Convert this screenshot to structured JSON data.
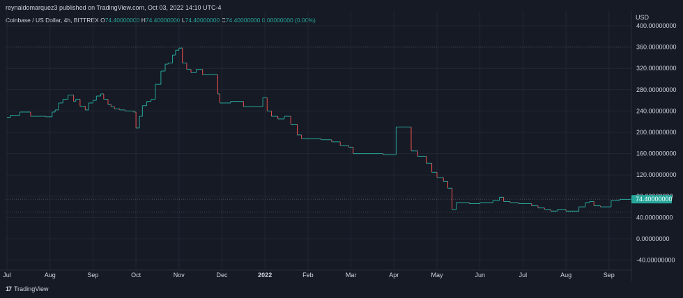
{
  "header": {
    "publisher": "reynaldomarquez3 published on TradingView.com, Oct 03, 2022 14:10 UTC-4"
  },
  "legend": {
    "symbol": "Coinbase / US Dollar, 4h, BITTREX",
    "o_label": "O",
    "o_value": "74.40000000",
    "h_label": "H",
    "h_value": "74.40000000",
    "l_label": "L",
    "l_value": "74.40000000",
    "c_label": "C",
    "c_value": "74.40000000",
    "change": "0.00000000 (0.00%)"
  },
  "footer": {
    "brand": "TradingView",
    "logo": "17"
  },
  "colors": {
    "background": "#161a25",
    "up": "#26a69a",
    "down": "#ef5350",
    "grid": "#232734",
    "text": "#d1d4dc"
  },
  "chart_data": {
    "type": "line",
    "currency": "USD",
    "current_price_label": "74.40000000",
    "current_price": 74.4,
    "ylim": [
      -60,
      410
    ],
    "y_ticks": [
      {
        "v": 400,
        "label": "400.00000000"
      },
      {
        "v": 360,
        "label": "360.00000000"
      },
      {
        "v": 320,
        "label": "320.00000000"
      },
      {
        "v": 280,
        "label": "280.00000000"
      },
      {
        "v": 240,
        "label": "240.00000000"
      },
      {
        "v": 200,
        "label": "200.00000000"
      },
      {
        "v": 160,
        "label": "160.00000000"
      },
      {
        "v": 120,
        "label": "120.00000000"
      },
      {
        "v": 80,
        "label": "80.00000000"
      },
      {
        "v": 40,
        "label": "40.00000000"
      },
      {
        "v": 0,
        "label": "0.00000000"
      },
      {
        "v": -40,
        "label": "-40.00000000"
      }
    ],
    "x_ticks": [
      {
        "t": 0,
        "label": "Jul"
      },
      {
        "t": 1,
        "label": "Aug"
      },
      {
        "t": 2,
        "label": "Sep"
      },
      {
        "t": 3,
        "label": "Oct"
      },
      {
        "t": 4,
        "label": "Nov"
      },
      {
        "t": 5,
        "label": "Dec"
      },
      {
        "t": 6,
        "label": "2022",
        "bold": true
      },
      {
        "t": 7,
        "label": "Feb"
      },
      {
        "t": 8,
        "label": "Mar"
      },
      {
        "t": 9,
        "label": "Apr"
      },
      {
        "t": 10,
        "label": "May"
      },
      {
        "t": 11,
        "label": "Jun"
      },
      {
        "t": 12,
        "label": "Jul"
      },
      {
        "t": 13,
        "label": "Aug"
      },
      {
        "t": 14,
        "label": "Sep"
      }
    ],
    "xlim": [
      0,
      14.8
    ],
    "reference_lines": [
      360,
      74.4,
      50
    ],
    "series": [
      {
        "values": [
          [
            0.0,
            228
          ],
          [
            0.08,
            232
          ],
          [
            0.3,
            238
          ],
          [
            0.55,
            230
          ],
          [
            0.9,
            229
          ],
          [
            1.05,
            238
          ],
          [
            1.12,
            242
          ],
          [
            1.2,
            255
          ],
          [
            1.3,
            262
          ],
          [
            1.42,
            270
          ],
          [
            1.55,
            258
          ],
          [
            1.6,
            262
          ],
          [
            1.7,
            249
          ],
          [
            1.82,
            242
          ],
          [
            1.9,
            255
          ],
          [
            2.0,
            260
          ],
          [
            2.08,
            268
          ],
          [
            2.18,
            272
          ],
          [
            2.25,
            262
          ],
          [
            2.35,
            252
          ],
          [
            2.42,
            248
          ],
          [
            2.5,
            244
          ],
          [
            2.62,
            242
          ],
          [
            2.75,
            240
          ],
          [
            2.95,
            238
          ],
          [
            3.0,
            208
          ],
          [
            3.08,
            230
          ],
          [
            3.15,
            250
          ],
          [
            3.25,
            258
          ],
          [
            3.35,
            262
          ],
          [
            3.45,
            290
          ],
          [
            3.58,
            315
          ],
          [
            3.68,
            328
          ],
          [
            3.75,
            330
          ],
          [
            3.85,
            345
          ],
          [
            3.92,
            354
          ],
          [
            4.0,
            358
          ],
          [
            4.08,
            330
          ],
          [
            4.18,
            318
          ],
          [
            4.28,
            312
          ],
          [
            4.4,
            318
          ],
          [
            4.55,
            308
          ],
          [
            4.9,
            272
          ],
          [
            4.95,
            255
          ],
          [
            5.2,
            258
          ],
          [
            5.5,
            248
          ],
          [
            5.95,
            265
          ],
          [
            6.05,
            240
          ],
          [
            6.15,
            230
          ],
          [
            6.3,
            225
          ],
          [
            6.45,
            230
          ],
          [
            6.6,
            215
          ],
          [
            6.75,
            195
          ],
          [
            6.85,
            188
          ],
          [
            7.3,
            186
          ],
          [
            7.55,
            182
          ],
          [
            7.75,
            175
          ],
          [
            7.95,
            172
          ],
          [
            8.05,
            160
          ],
          [
            8.75,
            158
          ],
          [
            9.05,
            210
          ],
          [
            9.4,
            165
          ],
          [
            9.55,
            155
          ],
          [
            9.75,
            142
          ],
          [
            9.88,
            125
          ],
          [
            10.0,
            115
          ],
          [
            10.15,
            108
          ],
          [
            10.25,
            95
          ],
          [
            10.35,
            55
          ],
          [
            10.45,
            68
          ],
          [
            10.75,
            66
          ],
          [
            11.0,
            68
          ],
          [
            11.3,
            72
          ],
          [
            11.45,
            78
          ],
          [
            11.55,
            70
          ],
          [
            11.7,
            68
          ],
          [
            11.9,
            66
          ],
          [
            12.2,
            62
          ],
          [
            12.35,
            58
          ],
          [
            12.5,
            55
          ],
          [
            12.65,
            52
          ],
          [
            12.8,
            55
          ],
          [
            13.0,
            52
          ],
          [
            13.3,
            60
          ],
          [
            13.45,
            68
          ],
          [
            13.55,
            70
          ],
          [
            13.65,
            62
          ],
          [
            13.8,
            60
          ],
          [
            14.05,
            72
          ],
          [
            14.25,
            74
          ],
          [
            14.5,
            74.4
          ],
          [
            14.8,
            74.4
          ]
        ]
      }
    ]
  }
}
